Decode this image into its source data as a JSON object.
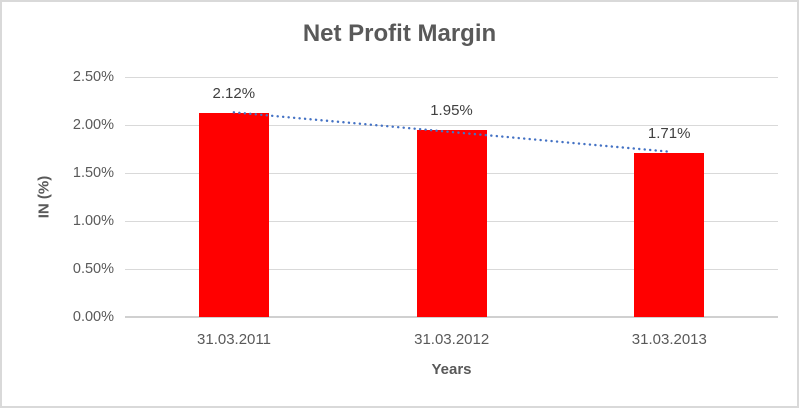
{
  "chart": {
    "title": "Net Profit Margin",
    "x_axis_title": "Years",
    "y_axis_title": "IN (%)",
    "colors": {
      "bar": "#ff0000",
      "trendline": "#4472c4",
      "gridline": "#d9d9d9",
      "axis_line": "#d0d0d0",
      "text": "#595959",
      "data_label_text": "#404040",
      "border": "#d9d9d9",
      "background": "#ffffff"
    }
  },
  "chart_data": {
    "type": "bar",
    "title": "Net Profit Margin",
    "xlabel": "Years",
    "ylabel": "IN (%)",
    "categories": [
      "31.03.2011",
      "31.03.2012",
      "31.03.2013"
    ],
    "values": [
      2.12,
      1.95,
      1.71
    ],
    "data_labels": [
      "2.12%",
      "1.95%",
      "1.71%"
    ],
    "y_ticks": [
      {
        "label": "2.50%",
        "value": 2.5
      },
      {
        "label": "2.00%",
        "value": 2.0
      },
      {
        "label": "1.50%",
        "value": 1.5
      },
      {
        "label": "1.00%",
        "value": 1.0
      },
      {
        "label": "0.50%",
        "value": 0.5
      },
      {
        "label": "0.00%",
        "value": 0.0
      }
    ],
    "ylim": [
      0,
      2.5
    ],
    "grid": true,
    "legend": false,
    "trendline": {
      "type": "linear",
      "style": "dotted",
      "color": "#4472c4",
      "start_value": 2.132,
      "end_value": 1.722
    }
  }
}
